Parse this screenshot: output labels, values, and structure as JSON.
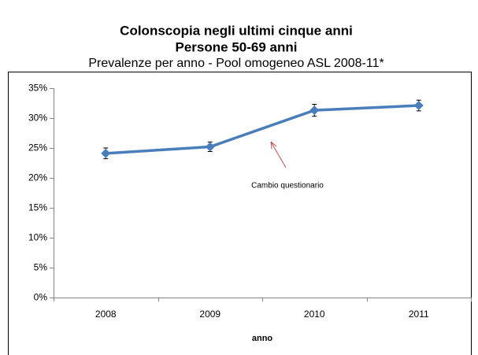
{
  "chart_data": {
    "type": "line",
    "title": "Colonscopia negli ultimi cinque anni",
    "title_line2": "Persone 50-69 anni",
    "subtitle": "Prevalenze per anno - Pool omogeneo ASL 2008-11*",
    "x_label": "anno",
    "annotation": "Cambio questionario",
    "categories": [
      "2008",
      "2009",
      "2010",
      "2011"
    ],
    "values": [
      24.1,
      25.2,
      31.3,
      32.1
    ],
    "errors": [
      0.9,
      0.8,
      1.0,
      0.9
    ],
    "color": "#4a7ebb",
    "ylim": [
      0,
      35
    ],
    "yticks": [
      {
        "value": 0,
        "label": "0%"
      },
      {
        "value": 5,
        "label": "5%"
      },
      {
        "value": 10,
        "label": "10%"
      },
      {
        "value": 15,
        "label": "15%"
      },
      {
        "value": 20,
        "label": "20%"
      },
      {
        "value": 25,
        "label": "25%"
      },
      {
        "value": 30,
        "label": "30%"
      },
      {
        "value": 35,
        "label": "35%"
      }
    ],
    "grid": false
  }
}
